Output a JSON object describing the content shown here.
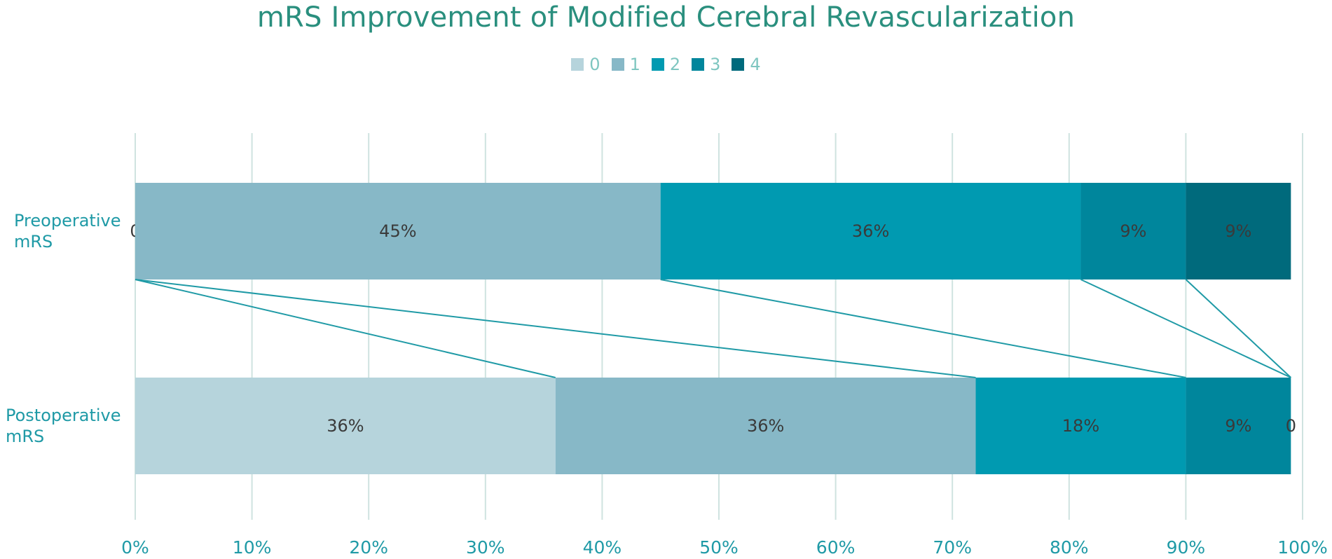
{
  "chart_data": {
    "type": "bar",
    "orientation": "horizontal",
    "stacked": "percent",
    "title": "mRS Improvement of Modified Cerebral Revascularization",
    "categories": [
      "Preoperative mRS",
      "Postoperative mRS"
    ],
    "category_lines": [
      [
        "Preoperative",
        "mRS"
      ],
      [
        "Postoperative",
        "mRS"
      ]
    ],
    "series": [
      {
        "name": "0",
        "values": [
          0,
          36
        ],
        "labels": [
          "0",
          "36%"
        ],
        "color": "#b6d4dc"
      },
      {
        "name": "1",
        "values": [
          45,
          36
        ],
        "labels": [
          "45%",
          "36%"
        ],
        "color": "#87b8c7"
      },
      {
        "name": "2",
        "values": [
          36,
          18
        ],
        "labels": [
          "36%",
          "18%"
        ],
        "color": "#009ab1"
      },
      {
        "name": "3",
        "values": [
          9,
          9
        ],
        "labels": [
          "9%",
          "9%"
        ],
        "color": "#00869c"
      },
      {
        "name": "4",
        "values": [
          9,
          0
        ],
        "labels": [
          "9%",
          "0"
        ],
        "color": "#006a7c"
      }
    ],
    "xlim": [
      0,
      100
    ],
    "xticks": [
      "0%",
      "10%",
      "20%",
      "30%",
      "40%",
      "50%",
      "60%",
      "70%",
      "80%",
      "90%",
      "100%"
    ],
    "grid": true,
    "legend": "top-center",
    "connector_lines": true,
    "colors": {
      "title": "#2a8f7e",
      "axis_text": "#1f9aa6",
      "legend_text": "#7ec6c0",
      "grid": "#cfe3e0",
      "connector": "#1f9aa6",
      "data_label": "#3a3a3a"
    }
  }
}
